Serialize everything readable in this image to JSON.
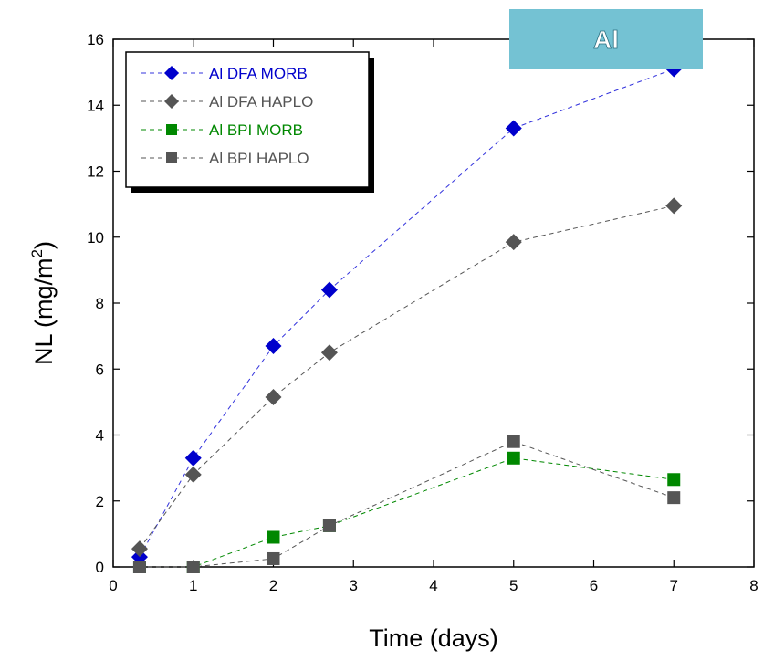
{
  "chart_data": {
    "type": "scatter",
    "title": "",
    "badge": "Al",
    "xlabel": "Time (days)",
    "ylabel": "NL (mg/m",
    "ylabel_sup": "2",
    "ylabel_close": ")",
    "xlim": [
      0,
      8
    ],
    "ylim": [
      0,
      16
    ],
    "xticks": [
      0,
      1,
      2,
      3,
      4,
      5,
      6,
      7,
      8
    ],
    "yticks": [
      0,
      2,
      4,
      6,
      8,
      10,
      12,
      14,
      16
    ],
    "grid": false,
    "legend_position": "top-left",
    "series": [
      {
        "name": "Al DFA MORB",
        "marker": "diamond",
        "color": "#0000cc",
        "line_color": "#3333dd",
        "x": [
          0.33,
          1,
          2,
          2.7,
          5,
          7
        ],
        "y": [
          0.3,
          3.3,
          6.7,
          8.4,
          13.3,
          15.1
        ]
      },
      {
        "name": "Al DFA HAPLO",
        "marker": "diamond",
        "color": "#555555",
        "line_color": "#555555",
        "x": [
          0.33,
          1,
          2,
          2.7,
          5,
          7
        ],
        "y": [
          0.55,
          2.8,
          5.15,
          6.5,
          9.85,
          10.95
        ]
      },
      {
        "name": "Al BPI MORB",
        "marker": "square",
        "color": "#008800",
        "line_color": "#008800",
        "x": [
          0.33,
          1,
          2,
          2.7,
          5,
          7
        ],
        "y": [
          0.0,
          0.0,
          0.9,
          1.25,
          3.3,
          2.65
        ]
      },
      {
        "name": "Al BPI HAPLO",
        "marker": "square",
        "color": "#555555",
        "line_color": "#555555",
        "x": [
          0.33,
          1,
          2,
          2.7,
          5,
          7
        ],
        "y": [
          0.0,
          0.0,
          0.25,
          1.25,
          3.8,
          2.1
        ]
      }
    ],
    "colors": {
      "badge_bg": "#74c2d3",
      "axis": "#000000"
    }
  }
}
